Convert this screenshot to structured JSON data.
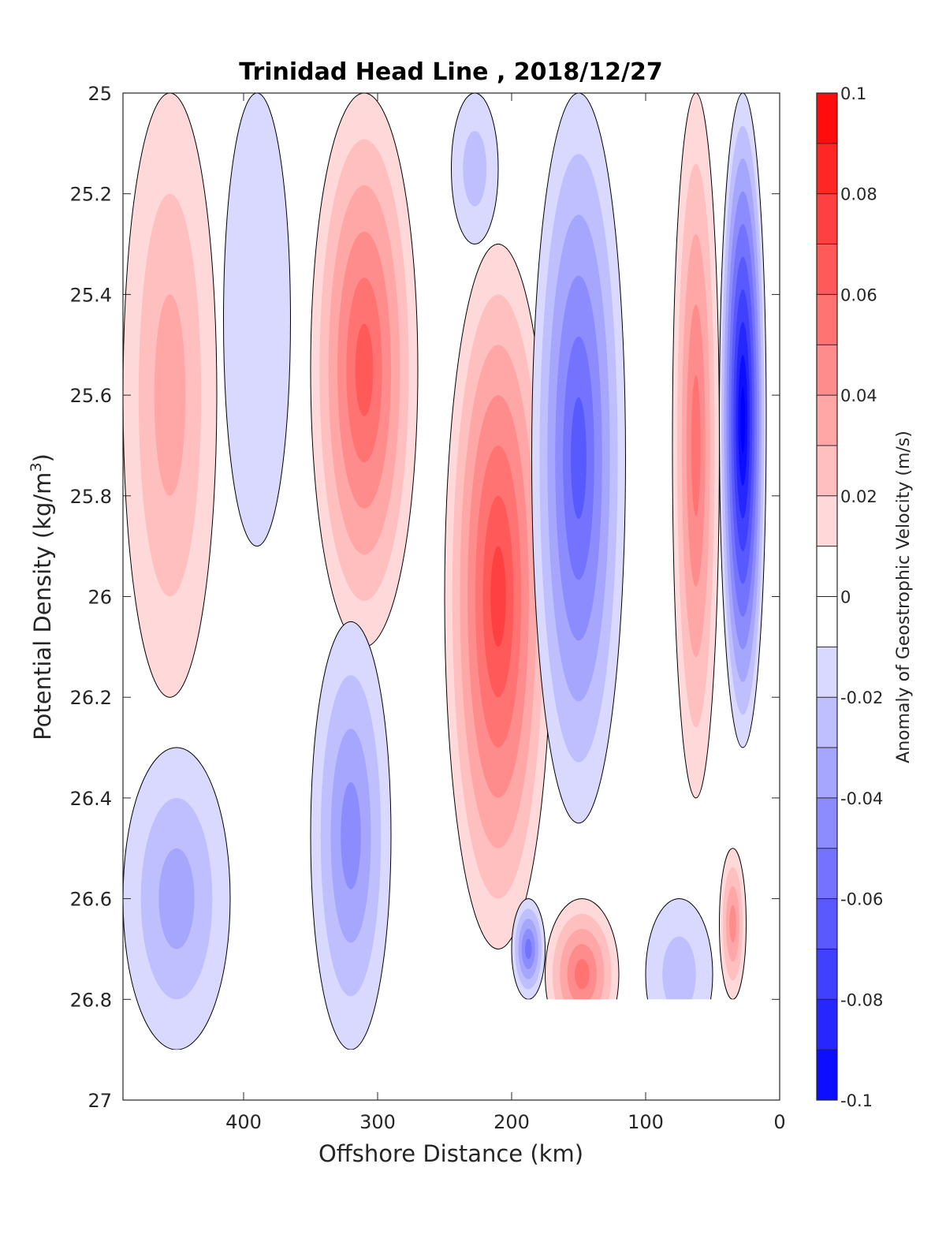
{
  "chart_data": {
    "type": "heatmap",
    "title": "Trinidad Head Line , 2018/12/27",
    "xlabel": "Offshore Distance (km)",
    "ylabel": "Potential Density (kg/m",
    "ylabel_sup": "3",
    "ylabel_close": ")",
    "colorbar_label": "Anomaly of Geostrophic Velocity (m/s)",
    "xlim": [
      490,
      0
    ],
    "ylim": [
      25,
      27
    ],
    "x_reversed": true,
    "y_reversed": true,
    "x_ticks": [
      "400",
      "300",
      "200",
      "100",
      "0"
    ],
    "x_tick_values": [
      400,
      300,
      200,
      100,
      0
    ],
    "y_ticks": [
      "25",
      "25.2",
      "25.4",
      "25.6",
      "25.8",
      "26",
      "26.2",
      "26.4",
      "26.6",
      "26.8",
      "27"
    ],
    "y_tick_values": [
      25,
      25.2,
      25.4,
      25.6,
      25.8,
      26,
      26.2,
      26.4,
      26.6,
      26.8,
      27
    ],
    "clim": [
      -0.1,
      0.1
    ],
    "colorbar_ticks": [
      "0.1",
      "0.08",
      "0.06",
      "0.04",
      "0.02",
      "0",
      "-0.02",
      "-0.04",
      "-0.06",
      "-0.08",
      "-0.1"
    ],
    "colorbar_tick_values": [
      0.1,
      0.08,
      0.06,
      0.04,
      0.02,
      0,
      -0.02,
      -0.04,
      -0.06,
      -0.08,
      -0.1
    ],
    "grid": false,
    "contour_levels": 20,
    "zero_contour": true,
    "features": [
      {
        "x_range": [
          490,
          420
        ],
        "y_range": [
          25,
          26.2
        ],
        "peak_velocity": 0.03
      },
      {
        "x_range": [
          415,
          365
        ],
        "y_range": [
          25,
          25.9
        ],
        "peak_velocity": -0.015
      },
      {
        "x_range": [
          350,
          270
        ],
        "y_range": [
          25,
          26.1
        ],
        "peak_velocity": 0.06
      },
      {
        "x_range": [
          245,
          210
        ],
        "y_range": [
          25,
          25.3
        ],
        "peak_velocity": -0.02
      },
      {
        "x_range": [
          250,
          170
        ],
        "y_range": [
          25.3,
          26.7
        ],
        "peak_velocity": 0.07
      },
      {
        "x_range": [
          185,
          115
        ],
        "y_range": [
          25,
          26.45
        ],
        "peak_velocity": -0.06
      },
      {
        "x_range": [
          80,
          45
        ],
        "y_range": [
          25,
          26.4
        ],
        "peak_velocity": 0.05
      },
      {
        "x_range": [
          45,
          10
        ],
        "y_range": [
          25,
          26.3
        ],
        "peak_velocity": -0.1
      },
      {
        "x_range": [
          350,
          290
        ],
        "y_range": [
          26.05,
          26.9
        ],
        "peak_velocity": -0.04
      },
      {
        "x_range": [
          490,
          410
        ],
        "y_range": [
          26.3,
          26.9
        ],
        "peak_velocity": -0.03
      },
      {
        "x_range": [
          200,
          175
        ],
        "y_range": [
          26.6,
          26.8
        ],
        "peak_velocity": -0.05
      },
      {
        "x_range": [
          175,
          120
        ],
        "y_range": [
          26.6,
          26.9
        ],
        "peak_velocity": 0.05
      },
      {
        "x_range": [
          100,
          50
        ],
        "y_range": [
          26.6,
          26.9
        ],
        "peak_velocity": -0.025
      },
      {
        "x_range": [
          45,
          25
        ],
        "y_range": [
          26.5,
          26.8
        ],
        "peak_velocity": 0.04
      }
    ],
    "data_mask": [
      {
        "x_range": [
          490,
          0
        ],
        "y_range": [
          26.9,
          27
        ]
      },
      {
        "x_range": [
          190,
          0
        ],
        "y_range": [
          26.8,
          27
        ]
      }
    ],
    "colormap_endpoints": {
      "negative": "#0000ff",
      "zero": "#ffffff",
      "positive": "#ff0000"
    }
  }
}
